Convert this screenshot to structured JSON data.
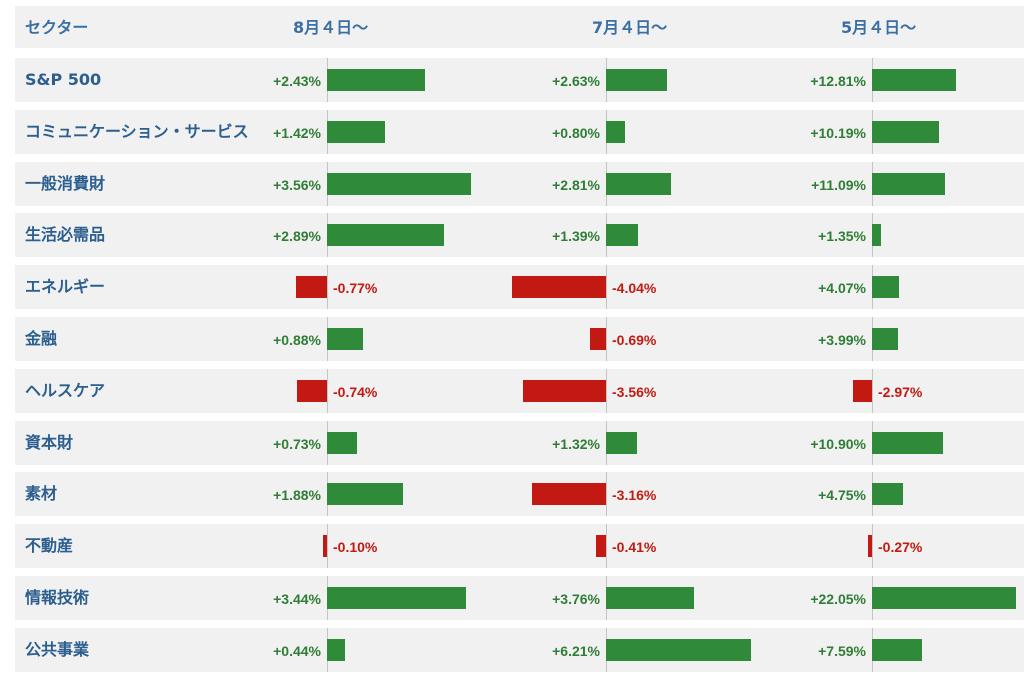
{
  "header": {
    "sector_label": "セクター",
    "periods": [
      "8月４日〜",
      "7月４日〜",
      "5月４日〜"
    ]
  },
  "colors": {
    "positive": "#2f8a3a",
    "negative": "#c21a12",
    "label": "#2c5f8f",
    "row_bg": "#f1f1f1"
  },
  "chart_data": {
    "type": "bar",
    "orientation": "horizontal",
    "unit": "%",
    "categories": [
      "S&P 500",
      "コミュニケーション・サービス",
      "一般消費財",
      "生活必需品",
      "エネルギー",
      "金融",
      "ヘルスケア",
      "資本財",
      "素材",
      "不動産",
      "情報技術",
      "公共事業"
    ],
    "series": [
      {
        "name": "8月４日〜",
        "values": [
          2.43,
          1.42,
          3.56,
          2.89,
          -0.77,
          0.88,
          -0.74,
          0.73,
          1.88,
          -0.1,
          3.44,
          0.44
        ],
        "labels": [
          "+2.43%",
          "+1.42%",
          "+3.56%",
          "+2.89%",
          "-0.77%",
          "+0.88%",
          "-0.74%",
          "+0.73%",
          "+1.88%",
          "-0.10%",
          "+3.44%",
          "+0.44%"
        ]
      },
      {
        "name": "7月４日〜",
        "values": [
          2.63,
          0.8,
          2.81,
          1.39,
          -4.04,
          -0.69,
          -3.56,
          1.32,
          -3.16,
          -0.41,
          3.76,
          6.21
        ],
        "labels": [
          "+2.63%",
          "+0.80%",
          "+2.81%",
          "+1.39%",
          "-4.04%",
          "-0.69%",
          "-3.56%",
          "+1.32%",
          "-3.16%",
          "-0.41%",
          "+3.76%",
          "+6.21%"
        ]
      },
      {
        "name": "5月４日〜",
        "values": [
          12.81,
          10.19,
          11.09,
          1.35,
          4.07,
          3.99,
          -2.97,
          10.9,
          4.75,
          -0.27,
          22.05,
          7.59
        ],
        "labels": [
          "+12.81%",
          "+10.19%",
          "+11.09%",
          "+1.35%",
          "+4.07%",
          "+3.99%",
          "-2.97%",
          "+10.90%",
          "+4.75%",
          "-0.27%",
          "+22.05%",
          "+7.59%"
        ]
      }
    ]
  }
}
